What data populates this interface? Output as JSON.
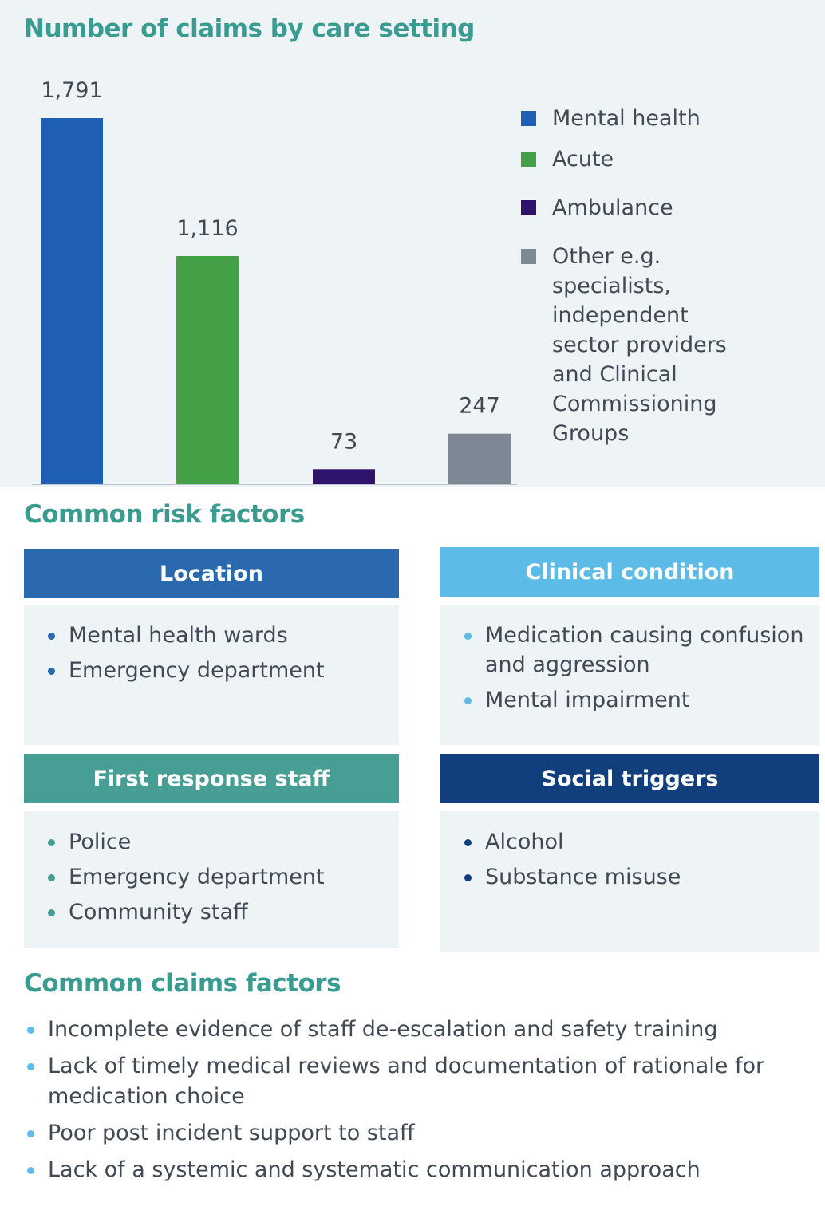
{
  "chart_data": {
    "type": "bar",
    "title": "Number of claims by care setting",
    "categories": [
      "Mental health",
      "Acute",
      "Ambulance",
      "Other e.g. specialists, independent sector providers and Clinical Commissioning Groups"
    ],
    "values": [
      1791,
      1116,
      73,
      247
    ],
    "value_labels": [
      "1,791",
      "1,116",
      "73",
      "247"
    ],
    "colors": [
      "#1f5fb4",
      "#43a047",
      "#2f136b",
      "#7d8894"
    ],
    "xlabel": "",
    "ylabel": "",
    "ylim": [
      0,
      1791
    ],
    "grid": false,
    "legend_position": "right"
  },
  "risk": {
    "title": "Common risk factors",
    "cards": [
      {
        "title": "Location",
        "color": "#2a69ae",
        "dot_color": "#2a69ae",
        "items": [
          "Mental health wards",
          "Emergency department"
        ]
      },
      {
        "title": "Clinical condition",
        "color": "#5dbbe7",
        "dot_color": "#5dbbe7",
        "items": [
          "Medication causing confusion and aggression",
          "Mental impairment"
        ]
      },
      {
        "title": "First response staff",
        "color": "#469e94",
        "dot_color": "#469e94",
        "items": [
          "Police",
          "Emergency department",
          "Community staff"
        ]
      },
      {
        "title": "Social triggers",
        "color": "#113e7d",
        "dot_color": "#113e7d",
        "items": [
          "Alcohol",
          "Substance misuse"
        ]
      }
    ]
  },
  "claims": {
    "title": "Common claims factors",
    "dot_color": "#5dbbe7",
    "items": [
      "Incomplete evidence of staff de-escalation and safety training",
      "Lack of timely medical reviews and documentation of rationale for medication choice",
      "Poor post incident support to staff",
      "Lack of a systemic and systematic communication approach"
    ]
  }
}
